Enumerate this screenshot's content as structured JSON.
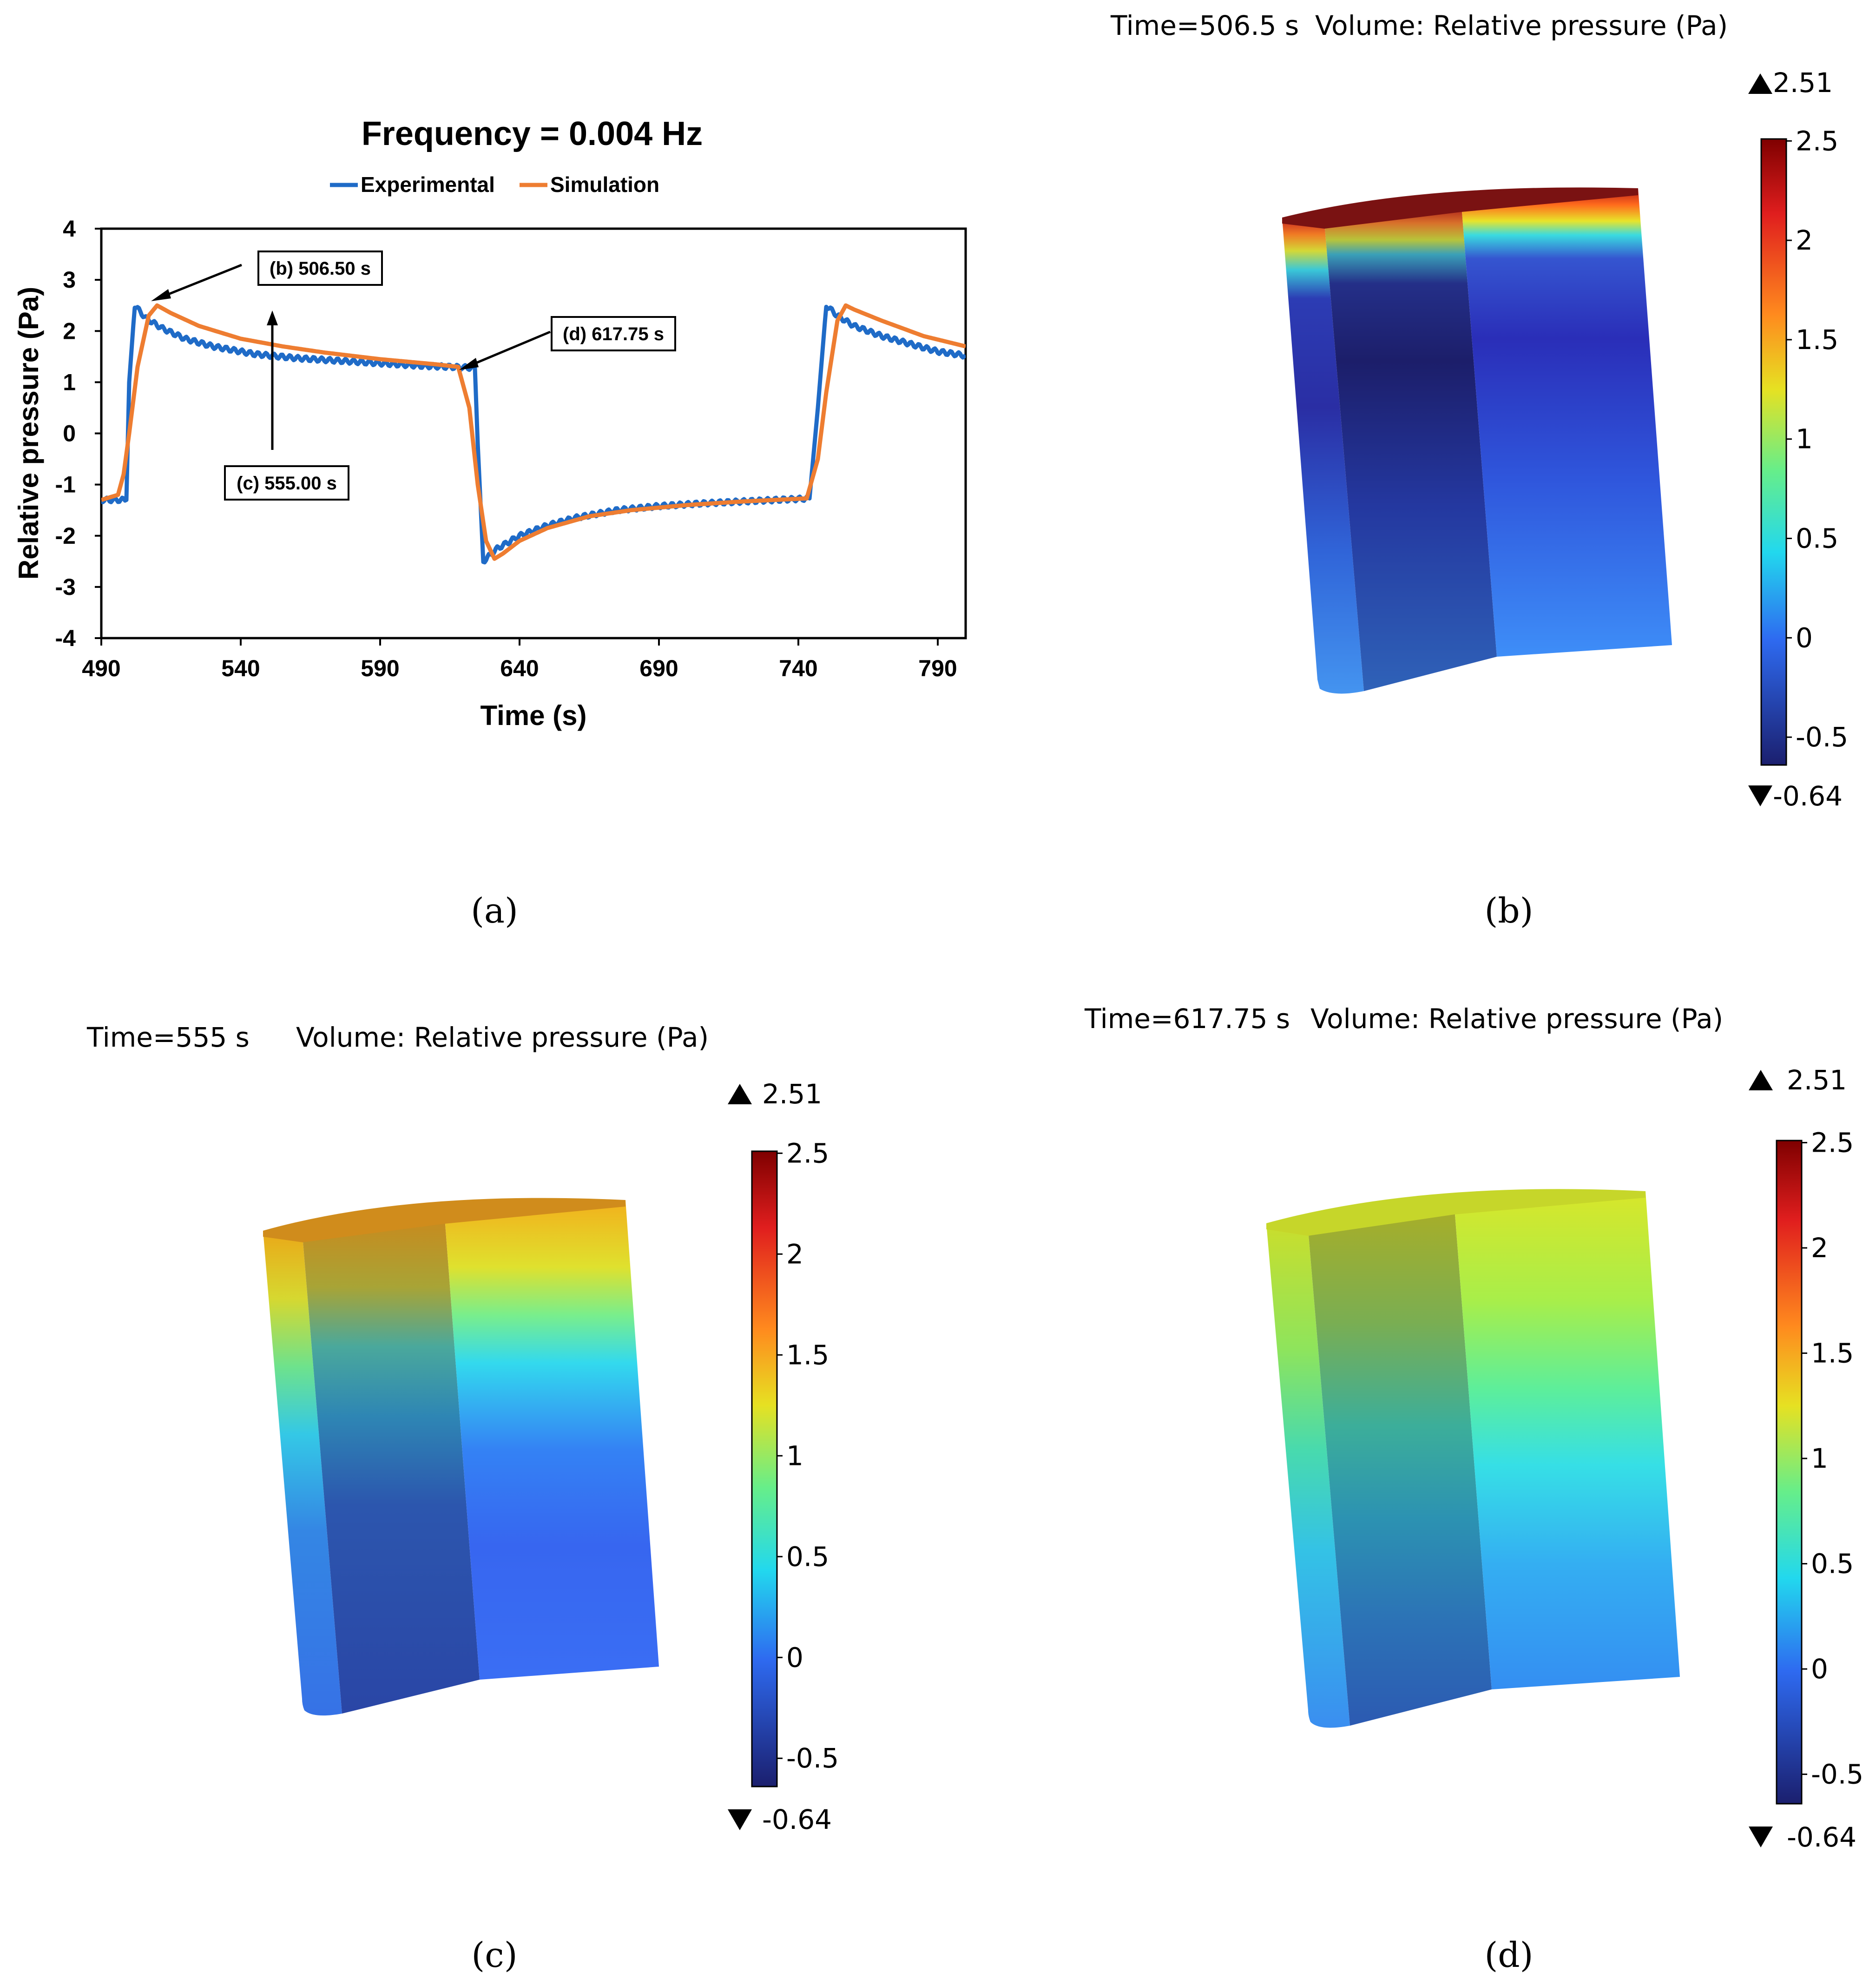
{
  "panel_captions": [
    "(a)",
    "(b)",
    "(c)",
    "(d)"
  ],
  "chart_data": {
    "type": "line",
    "title": "Frequency = 0.004 Hz",
    "xlabel": "Time (s)",
    "ylabel": "Relative pressure (Pa)",
    "xlim": [
      490,
      800
    ],
    "ylim": [
      -4,
      4
    ],
    "xticks": [
      490,
      540,
      590,
      640,
      690,
      740,
      790
    ],
    "yticks": [
      4,
      3,
      2,
      1,
      0,
      -1,
      -2,
      -3,
      -4
    ],
    "legend": "top",
    "grid": false,
    "series": [
      {
        "name": "Experimental",
        "color": "#1f6bc7",
        "x": [
          490,
          499,
          500,
          502,
          506,
          512,
          520,
          530,
          545,
          560,
          575,
          590,
          605,
          620,
          624,
          625,
          627,
          632,
          640,
          650,
          660,
          675,
          690,
          705,
          720,
          740,
          744,
          747,
          750,
          754,
          760,
          770,
          780,
          790,
          800
        ],
        "y": [
          -1.3,
          -1.3,
          1.0,
          2.5,
          2.25,
          2.05,
          1.85,
          1.7,
          1.55,
          1.47,
          1.42,
          1.37,
          1.32,
          1.29,
          1.28,
          -0.2,
          -2.5,
          -2.25,
          -2.0,
          -1.8,
          -1.65,
          -1.5,
          -1.42,
          -1.37,
          -1.33,
          -1.28,
          -1.27,
          0.5,
          2.5,
          2.3,
          2.1,
          1.9,
          1.75,
          1.6,
          1.52
        ]
      },
      {
        "name": "Simulation",
        "color": "#ee7d31",
        "x": [
          490,
          496,
          498,
          500,
          503,
          507,
          510,
          515,
          525,
          540,
          555,
          570,
          590,
          610,
          618,
          622,
          625,
          628,
          631,
          634,
          640,
          650,
          665,
          680,
          700,
          720,
          743,
          747,
          750,
          754,
          757,
          760,
          770,
          785,
          800
        ],
        "y": [
          -1.3,
          -1.2,
          -0.8,
          0.0,
          1.3,
          2.3,
          2.5,
          2.35,
          2.1,
          1.85,
          1.7,
          1.58,
          1.45,
          1.35,
          1.3,
          0.5,
          -1.0,
          -2.1,
          -2.45,
          -2.35,
          -2.1,
          -1.85,
          -1.62,
          -1.5,
          -1.4,
          -1.33,
          -1.27,
          -0.5,
          0.8,
          2.2,
          2.5,
          2.42,
          2.2,
          1.9,
          1.7
        ]
      }
    ],
    "annotations": [
      {
        "label": "(b) 506.50 s",
        "x": 507,
        "y": 2.55
      },
      {
        "label": "(c) 555.00 s",
        "x": 552,
        "y": 1.75
      },
      {
        "label": "(d) 617.75 s",
        "x": 617,
        "y": 1.3
      }
    ]
  },
  "simulation_panels": [
    {
      "id": "b",
      "time_label": "Time=506.5 s",
      "volume_label": "Volume: Relative pressure (Pa)",
      "max_label": "2.51",
      "min_label": "-0.64",
      "colorbar_ticks": [
        "2.5",
        "2",
        "1.5",
        "1",
        "0.5",
        "0",
        "-0.5"
      ]
    },
    {
      "id": "c",
      "time_label": "Time=555 s",
      "volume_label": "Volume: Relative pressure (Pa)",
      "max_label": "2.51",
      "min_label": "-0.64",
      "colorbar_ticks": [
        "2.5",
        "2",
        "1.5",
        "1",
        "0.5",
        "0",
        "-0.5"
      ]
    },
    {
      "id": "d",
      "time_label": "Time=617.75 s",
      "volume_label": "Volume: Relative pressure (Pa)",
      "max_label": "2.51",
      "min_label": "-0.64",
      "colorbar_ticks": [
        "2.5",
        "2",
        "1.5",
        "1",
        "0.5",
        "0",
        "-0.5"
      ]
    }
  ],
  "colors": {
    "axis": "#000000",
    "background": "#ffffff"
  }
}
